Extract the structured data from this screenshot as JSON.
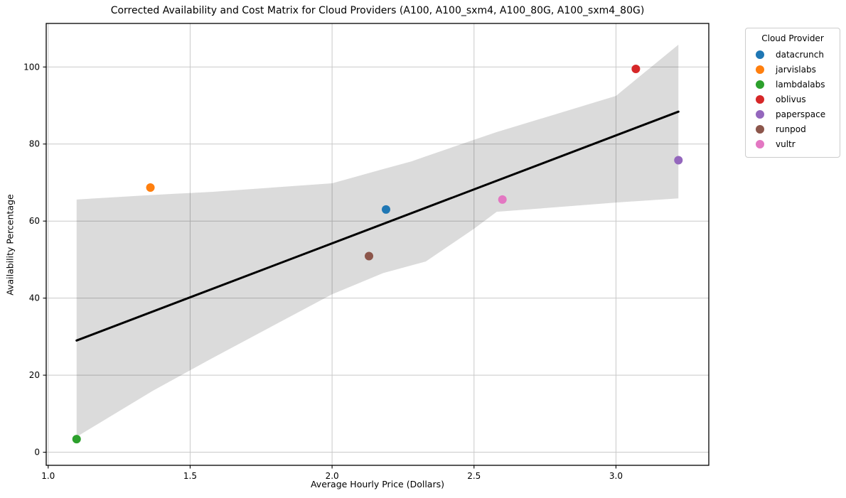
{
  "chart_data": {
    "type": "scatter",
    "title": "Corrected Availability and Cost Matrix for Cloud Providers (A100, A100_sxm4, A100_80G, A100_sxm4_80G)",
    "xlabel": "Average Hourly Price (Dollars)",
    "ylabel": "Availability Percentage",
    "xlim": [
      0.993,
      3.327
    ],
    "ylim": [
      -3.4,
      111.3
    ],
    "xticks": [
      1.0,
      1.5,
      2.0,
      2.5,
      3.0
    ],
    "yticks": [
      0,
      20,
      40,
      60,
      80,
      100
    ],
    "grid": true,
    "grid_color": "#c9c9c9",
    "background": "#ffffff",
    "legend_title": "Cloud Provider",
    "legend_position": "outside-right",
    "series": [
      {
        "name": "datacrunch",
        "color": "#1f77b4",
        "points": [
          [
            2.19,
            63.0
          ]
        ]
      },
      {
        "name": "jarvislabs",
        "color": "#ff7f0e",
        "points": [
          [
            1.36,
            68.7
          ]
        ]
      },
      {
        "name": "lambdalabs",
        "color": "#2ca02c",
        "points": [
          [
            1.1,
            3.4
          ]
        ]
      },
      {
        "name": "oblivus",
        "color": "#d62728",
        "points": [
          [
            3.07,
            99.5
          ]
        ]
      },
      {
        "name": "paperspace",
        "color": "#9467bd",
        "points": [
          [
            3.22,
            75.8
          ]
        ]
      },
      {
        "name": "runpod",
        "color": "#8c564b",
        "points": [
          [
            2.13,
            50.9
          ]
        ]
      },
      {
        "name": "vultr",
        "color": "#e377c2",
        "points": [
          [
            2.6,
            65.6
          ]
        ]
      }
    ],
    "regression_line": {
      "color": "#000000",
      "x": [
        1.1,
        3.22
      ],
      "y": [
        29.0,
        88.4
      ]
    },
    "confidence_band": {
      "color": "#000000",
      "opacity": 0.14,
      "x": [
        1.1,
        1.37,
        1.58,
        2.0,
        2.18,
        2.28,
        2.33,
        2.5,
        2.58,
        3.0,
        3.22
      ],
      "upper": [
        65.6,
        66.8,
        67.6,
        69.8,
        73.5,
        75.5,
        76.8,
        81.1,
        83.1,
        92.5,
        105.8
      ],
      "lower": [
        4.0,
        16.0,
        24.5,
        41.0,
        46.5,
        48.5,
        49.5,
        58.0,
        62.4,
        64.8,
        65.9
      ]
    }
  }
}
